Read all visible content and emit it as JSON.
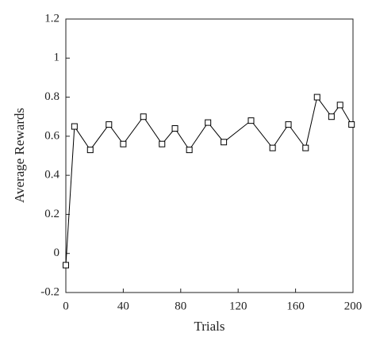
{
  "chart_data": {
    "type": "line",
    "xlabel": "Trials",
    "ylabel": "Average Rewards",
    "x": [
      0,
      6,
      17,
      30,
      40,
      54,
      67,
      76,
      86,
      99,
      110,
      129,
      144,
      155,
      167,
      175,
      185,
      191,
      199
    ],
    "series": [
      {
        "name": "Average Rewards",
        "color": "#000000",
        "values": [
          -0.06,
          0.65,
          0.53,
          0.66,
          0.56,
          0.7,
          0.56,
          0.64,
          0.53,
          0.67,
          0.57,
          0.68,
          0.54,
          0.66,
          0.54,
          0.8,
          0.7,
          0.76,
          0.66
        ]
      }
    ],
    "xlim": [
      0,
      200
    ],
    "xticks": [
      0,
      40,
      80,
      120,
      160,
      200
    ],
    "ylim": [
      -0.2,
      1.2
    ],
    "yticks": [
      -0.2,
      0,
      0.2,
      0.4,
      0.6,
      0.8,
      1,
      1.2
    ]
  }
}
